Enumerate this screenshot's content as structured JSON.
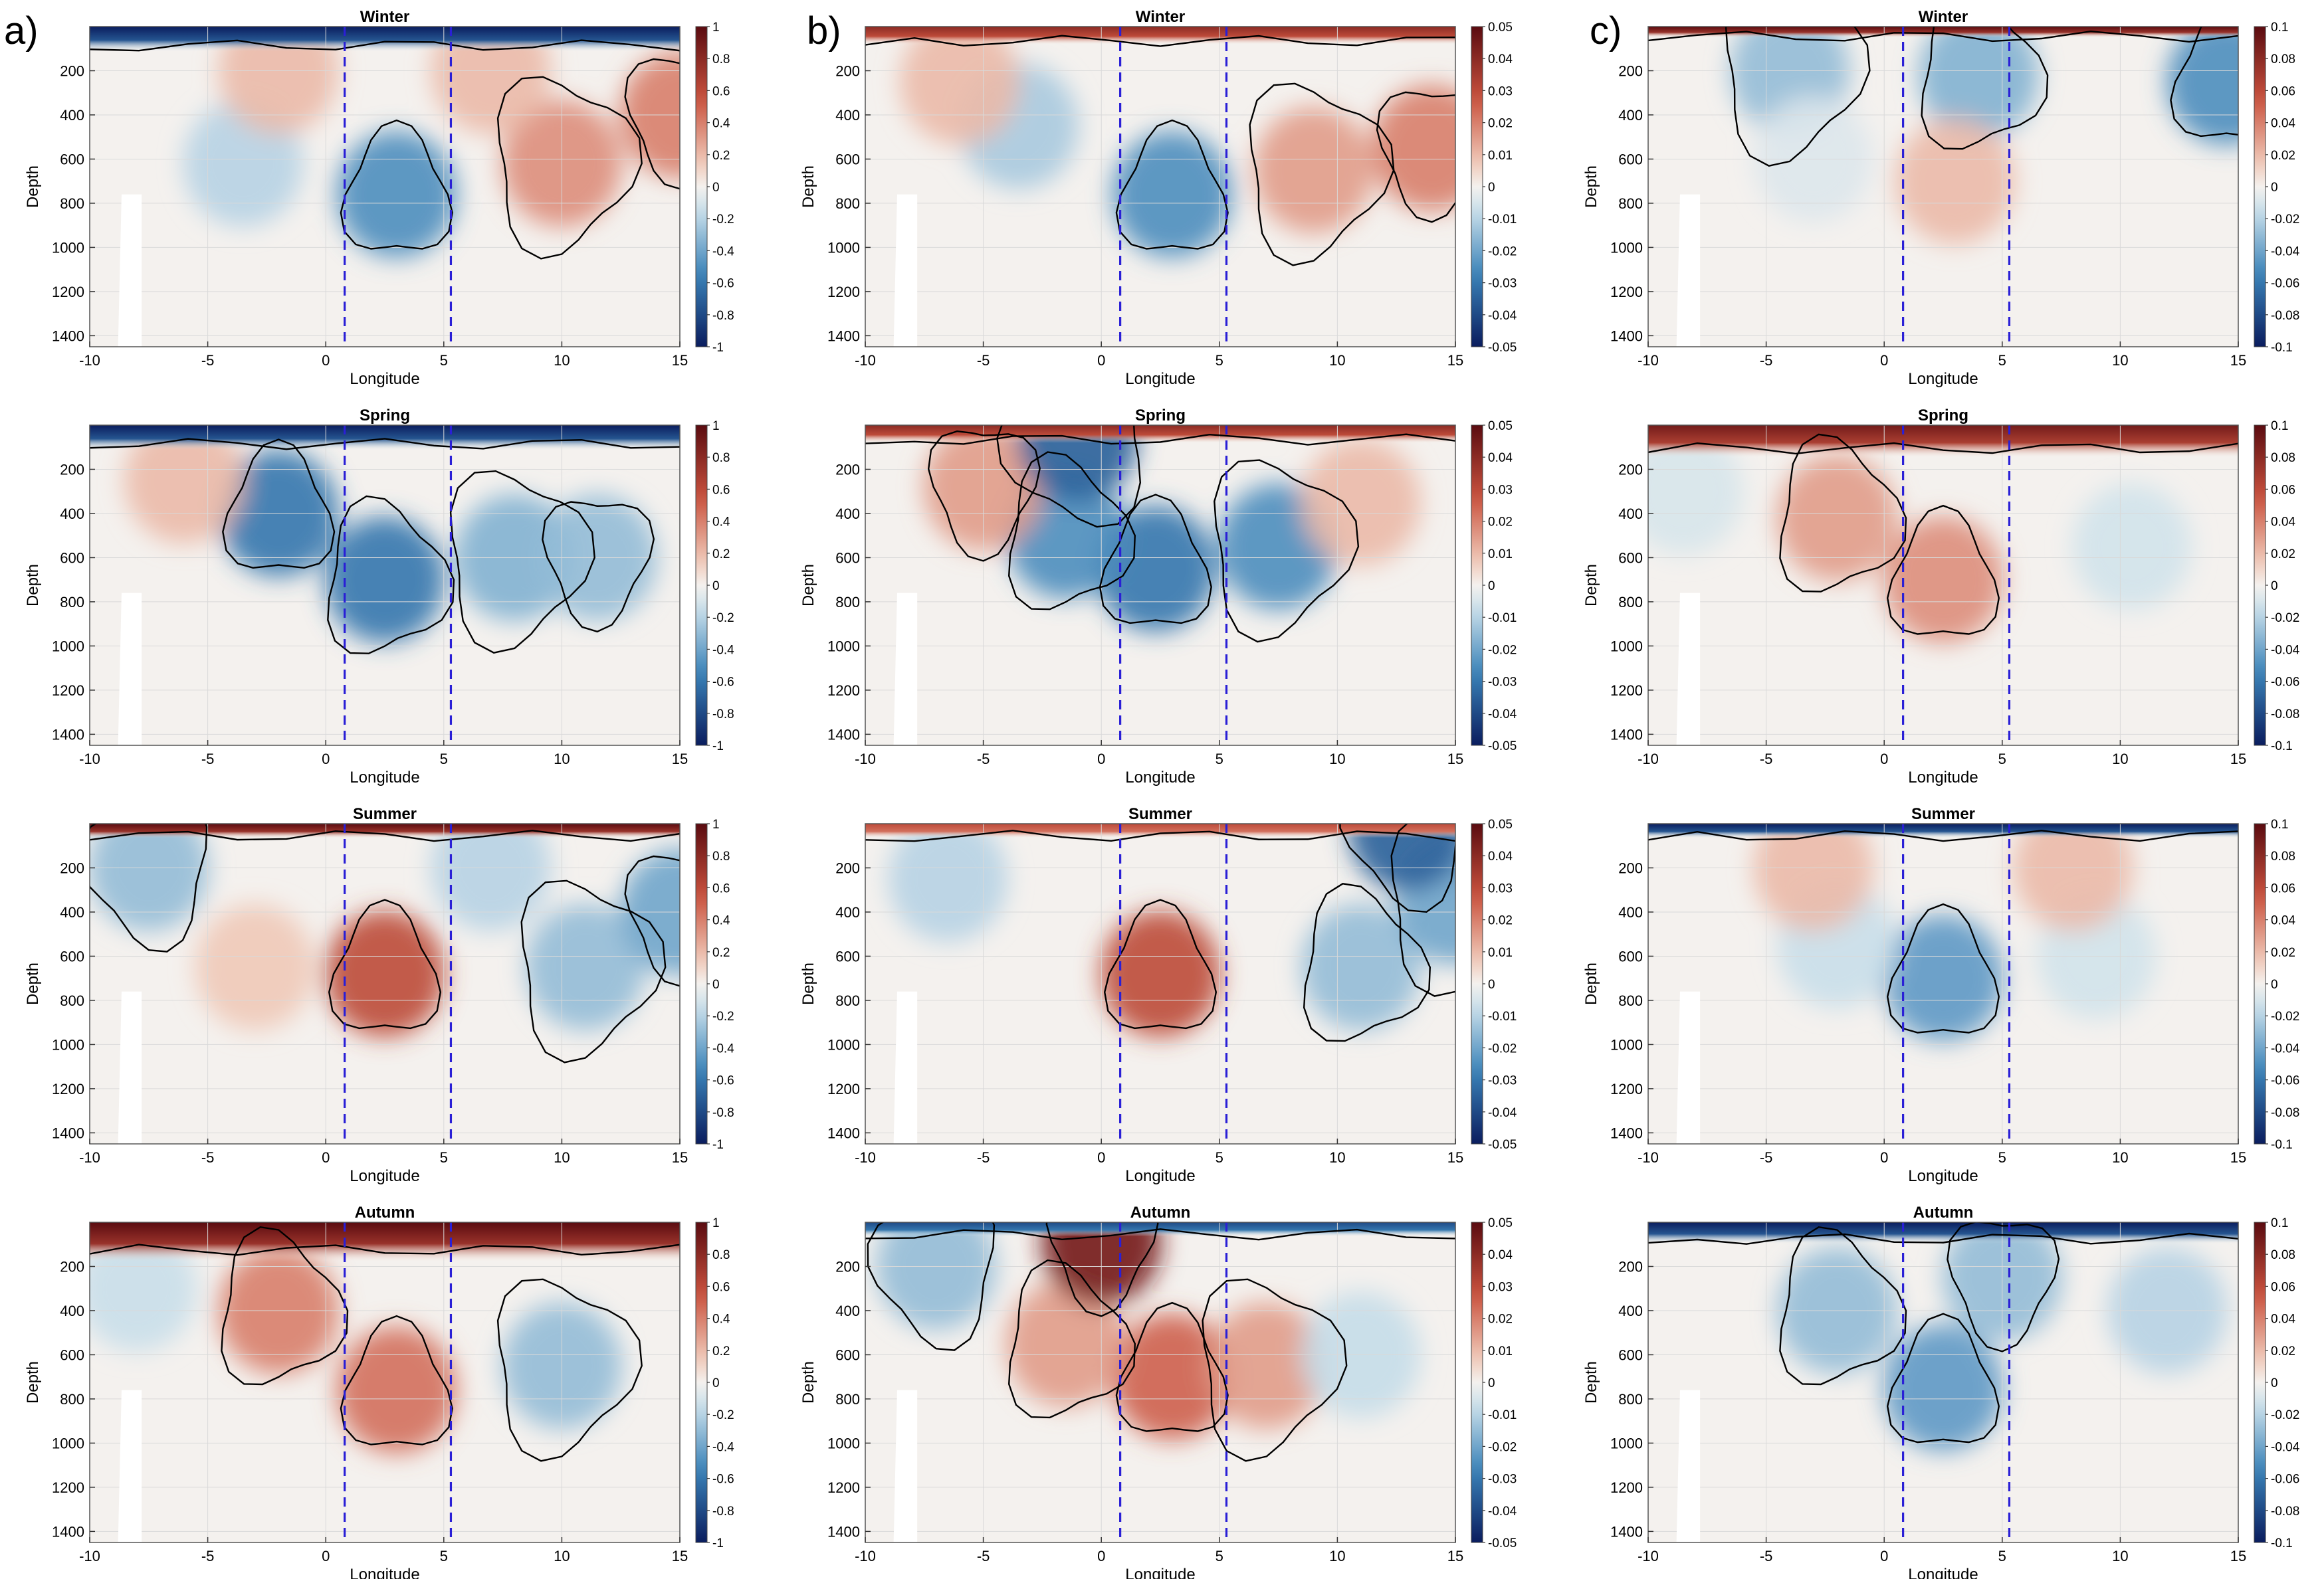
{
  "figure": {
    "panel_letters": [
      "a)",
      "b)",
      "c)"
    ]
  },
  "colors": {
    "dark_blue": "#0a1d5e",
    "mid_blue": "#3a82b8",
    "light_blue": "#c9dfea",
    "neutral": "#f4f1ee",
    "light_red": "#f0c9b8",
    "mid_red": "#c9523e",
    "dark_red": "#5a0b10",
    "boundary_line": "#2a1fd6",
    "contour": "#000000",
    "land_mask": "#ffffff",
    "frame": "#555555"
  },
  "chart_data": [
    {
      "type": "heatmap",
      "column": "a",
      "title": "Winter",
      "xlabel": "Longitude",
      "ylabel": "Depth",
      "xlim": [
        -10,
        15
      ],
      "ylim": [
        1450,
        0
      ],
      "xticks": [
        "-10",
        "-5",
        "0",
        "5",
        "10",
        "15"
      ],
      "yticks": [
        "200",
        "400",
        "600",
        "800",
        "1000",
        "1200",
        "1400"
      ],
      "colorbar": {
        "range": [
          -1,
          1
        ],
        "ticks": [
          "1",
          "0.8",
          "0.6",
          "0.4",
          "0.2",
          "0",
          "-0.2",
          "-0.4",
          "-0.6",
          "-0.8",
          "-1"
        ]
      },
      "boundary_lines_x": [
        0.8,
        5.3
      ],
      "land_mask": {
        "x": [
          -8.8,
          -7.8
        ],
        "depth_from": 760
      },
      "surface_band": {
        "value": -1.0,
        "depth": 70
      },
      "features": [
        {
          "x": 3,
          "depth": 760,
          "value": -0.5
        },
        {
          "x": -3.5,
          "depth": 620,
          "value": -0.2
        },
        {
          "x": 10,
          "depth": 620,
          "value": 0.35
        },
        {
          "x": 15,
          "depth": 400,
          "value": 0.4
        },
        {
          "x": -2,
          "depth": 200,
          "value": 0.2
        },
        {
          "x": 7,
          "depth": 200,
          "value": 0.2
        }
      ]
    },
    {
      "type": "heatmap",
      "column": "a",
      "title": "Spring",
      "xlabel": "Longitude",
      "ylabel": "Depth",
      "xlim": [
        -10,
        15
      ],
      "ylim": [
        1450,
        0
      ],
      "xticks": [
        "-10",
        "-5",
        "0",
        "5",
        "10",
        "15"
      ],
      "yticks": [
        "200",
        "400",
        "600",
        "800",
        "1000",
        "1200",
        "1400"
      ],
      "colorbar": {
        "range": [
          -1,
          1
        ],
        "ticks": [
          "1",
          "0.8",
          "0.6",
          "0.4",
          "0.2",
          "0",
          "-0.2",
          "-0.4",
          "-0.6",
          "-0.8",
          "-1"
        ]
      },
      "boundary_lines_x": [
        0.8,
        5.3
      ],
      "land_mask": {
        "x": [
          -8.8,
          -7.8
        ],
        "depth_from": 760
      },
      "surface_band": {
        "value": -1.0,
        "depth": 70
      },
      "features": [
        {
          "x": -2,
          "depth": 400,
          "value": -0.6
        },
        {
          "x": 2.5,
          "depth": 700,
          "value": -0.6
        },
        {
          "x": 8,
          "depth": 600,
          "value": -0.35
        },
        {
          "x": 11.5,
          "depth": 600,
          "value": -0.3
        },
        {
          "x": -6,
          "depth": 250,
          "value": 0.2
        }
      ]
    },
    {
      "type": "heatmap",
      "column": "a",
      "title": "Summer",
      "xlabel": "Longitude",
      "ylabel": "Depth",
      "xlim": [
        -10,
        15
      ],
      "ylim": [
        1450,
        0
      ],
      "xticks": [
        "-10",
        "-5",
        "0",
        "5",
        "10",
        "15"
      ],
      "yticks": [
        "200",
        "400",
        "600",
        "800",
        "1000",
        "1200",
        "1400"
      ],
      "colorbar": {
        "range": [
          -1,
          1
        ],
        "ticks": [
          "1",
          "0.8",
          "0.6",
          "0.4",
          "0.2",
          "0",
          "-0.2",
          "-0.4",
          "-0.6",
          "-0.8",
          "-1"
        ]
      },
      "boundary_lines_x": [
        0.8,
        5.3
      ],
      "land_mask": {
        "x": [
          -8.8,
          -7.8
        ],
        "depth_from": 760
      },
      "surface_band": {
        "value": 1.0,
        "depth": 40
      },
      "features": [
        {
          "x": 2.5,
          "depth": 680,
          "value": 0.6
        },
        {
          "x": -3,
          "depth": 650,
          "value": 0.15
        },
        {
          "x": 11,
          "depth": 650,
          "value": -0.3
        },
        {
          "x": 15,
          "depth": 400,
          "value": -0.4
        },
        {
          "x": -7.5,
          "depth": 200,
          "value": -0.3
        },
        {
          "x": 7,
          "depth": 200,
          "value": -0.2
        }
      ]
    },
    {
      "type": "heatmap",
      "column": "a",
      "title": "Autumn",
      "xlabel": "Longitude",
      "ylabel": "Depth",
      "xlim": [
        -10,
        15
      ],
      "ylim": [
        1450,
        0
      ],
      "xticks": [
        "-10",
        "-5",
        "0",
        "5",
        "10",
        "15"
      ],
      "yticks": [
        "200",
        "400",
        "600",
        "800",
        "1000",
        "1200",
        "1400"
      ],
      "colorbar": {
        "range": [
          -1,
          1
        ],
        "ticks": [
          "1",
          "0.8",
          "0.6",
          "0.4",
          "0.2",
          "0",
          "-0.2",
          "-0.4",
          "-0.6",
          "-0.8",
          "-1"
        ]
      },
      "boundary_lines_x": [
        0.8,
        5.3
      ],
      "land_mask": {
        "x": [
          -8.8,
          -7.8
        ],
        "depth_from": 760
      },
      "surface_band": {
        "value": 1.0,
        "depth": 110
      },
      "features": [
        {
          "x": 3,
          "depth": 760,
          "value": 0.45
        },
        {
          "x": -2,
          "depth": 400,
          "value": 0.4
        },
        {
          "x": 10,
          "depth": 650,
          "value": -0.3
        },
        {
          "x": -8,
          "depth": 300,
          "value": -0.15
        }
      ]
    },
    {
      "type": "heatmap",
      "column": "b",
      "title": "Winter",
      "xlabel": "Longitude",
      "ylabel": "Depth",
      "xlim": [
        -10,
        15
      ],
      "ylim": [
        1450,
        0
      ],
      "xticks": [
        "-10",
        "-5",
        "0",
        "5",
        "10",
        "15"
      ],
      "yticks": [
        "200",
        "400",
        "600",
        "800",
        "1000",
        "1200",
        "1400"
      ],
      "colorbar": {
        "range": [
          -0.05,
          0.05
        ],
        "ticks": [
          "0.05",
          "0.04",
          "0.03",
          "0.02",
          "0.01",
          "0",
          "-0.01",
          "-0.02",
          "-0.03",
          "-0.04",
          "-0.05"
        ]
      },
      "boundary_lines_x": [
        0.8,
        5.3
      ],
      "land_mask": {
        "x": [
          -8.8,
          -7.8
        ],
        "depth_from": 760
      },
      "surface_band": {
        "value": 0.04,
        "depth": 50
      },
      "features": [
        {
          "x": 3,
          "depth": 760,
          "value": -0.025
        },
        {
          "x": -3.5,
          "depth": 450,
          "value": -0.012
        },
        {
          "x": 9,
          "depth": 650,
          "value": 0.015
        },
        {
          "x": 14,
          "depth": 550,
          "value": 0.02
        },
        {
          "x": -6,
          "depth": 250,
          "value": 0.01
        }
      ]
    },
    {
      "type": "heatmap",
      "column": "b",
      "title": "Spring",
      "xlabel": "Longitude",
      "ylabel": "Depth",
      "xlim": [
        -10,
        15
      ],
      "ylim": [
        1450,
        0
      ],
      "xticks": [
        "-10",
        "-5",
        "0",
        "5",
        "10",
        "15"
      ],
      "yticks": [
        "200",
        "400",
        "600",
        "800",
        "1000",
        "1200",
        "1400"
      ],
      "colorbar": {
        "range": [
          -0.05,
          0.05
        ],
        "ticks": [
          "0.05",
          "0.04",
          "0.03",
          "0.02",
          "0.01",
          "0",
          "-0.01",
          "-0.02",
          "-0.03",
          "-0.04",
          "-0.05"
        ]
      },
      "boundary_lines_x": [
        0.8,
        5.3
      ],
      "land_mask": {
        "x": [
          -8.8,
          -7.8
        ],
        "depth_from": 760
      },
      "surface_band": {
        "value": 0.04,
        "depth": 50
      },
      "features": [
        {
          "x": 2.3,
          "depth": 650,
          "value": -0.03
        },
        {
          "x": -1.5,
          "depth": 500,
          "value": -0.025
        },
        {
          "x": 7.5,
          "depth": 550,
          "value": -0.025
        },
        {
          "x": -5,
          "depth": 280,
          "value": 0.015
        },
        {
          "x": 11,
          "depth": 350,
          "value": 0.01
        },
        {
          "x": -1,
          "depth": 60,
          "value": -0.035
        }
      ]
    },
    {
      "type": "heatmap",
      "column": "b",
      "title": "Summer",
      "xlabel": "Longitude",
      "ylabel": "Depth",
      "xlim": [
        -10,
        15
      ],
      "ylim": [
        1450,
        0
      ],
      "xticks": [
        "-10",
        "-5",
        "0",
        "5",
        "10",
        "15"
      ],
      "yticks": [
        "200",
        "400",
        "600",
        "800",
        "1000",
        "1200",
        "1400"
      ],
      "colorbar": {
        "range": [
          -0.05,
          0.05
        ],
        "ticks": [
          "0.05",
          "0.04",
          "0.03",
          "0.02",
          "0.01",
          "0",
          "-0.01",
          "-0.02",
          "-0.03",
          "-0.04",
          "-0.05"
        ]
      },
      "boundary_lines_x": [
        0.8,
        5.3
      ],
      "land_mask": {
        "x": [
          -8.8,
          -7.8
        ],
        "depth_from": 760
      },
      "surface_band": {
        "value": 0.03,
        "depth": 40
      },
      "features": [
        {
          "x": 2.5,
          "depth": 680,
          "value": 0.03
        },
        {
          "x": 11,
          "depth": 650,
          "value": -0.015
        },
        {
          "x": 15,
          "depth": 350,
          "value": -0.02
        },
        {
          "x": -6.5,
          "depth": 250,
          "value": -0.01
        },
        {
          "x": 13,
          "depth": 20,
          "value": -0.035
        }
      ]
    },
    {
      "type": "heatmap",
      "column": "b",
      "title": "Autumn",
      "xlabel": "Longitude",
      "ylabel": "Depth",
      "xlim": [
        -10,
        15
      ],
      "ylim": [
        1450,
        0
      ],
      "xticks": [
        "-10",
        "-5",
        "0",
        "5",
        "10",
        "15"
      ],
      "yticks": [
        "200",
        "400",
        "600",
        "800",
        "1000",
        "1200",
        "1400"
      ],
      "colorbar": {
        "range": [
          -0.05,
          0.05
        ],
        "ticks": [
          "0.05",
          "0.04",
          "0.03",
          "0.02",
          "0.01",
          "0",
          "-0.01",
          "-0.02",
          "-0.03",
          "-0.04",
          "-0.05"
        ]
      },
      "boundary_lines_x": [
        0.8,
        5.3
      ],
      "land_mask": {
        "x": [
          -8.8,
          -7.8
        ],
        "depth_from": 760
      },
      "surface_band": {
        "value": -0.04,
        "depth": 40
      },
      "features": [
        {
          "x": 3,
          "depth": 700,
          "value": 0.025
        },
        {
          "x": -1.5,
          "depth": 550,
          "value": 0.015
        },
        {
          "x": 7,
          "depth": 650,
          "value": 0.015
        },
        {
          "x": 0,
          "depth": 90,
          "value": 0.045
        },
        {
          "x": -7,
          "depth": 200,
          "value": -0.015
        },
        {
          "x": 11,
          "depth": 600,
          "value": -0.008
        }
      ]
    },
    {
      "type": "heatmap",
      "column": "c",
      "title": "Winter",
      "xlabel": "Longitude",
      "ylabel": "Depth",
      "xlim": [
        -10,
        15
      ],
      "ylim": [
        1450,
        0
      ],
      "xticks": [
        "-10",
        "-5",
        "0",
        "5",
        "10",
        "15"
      ],
      "yticks": [
        "200",
        "400",
        "600",
        "800",
        "1000",
        "1200",
        "1400"
      ],
      "colorbar": {
        "range": [
          -0.1,
          0.1
        ],
        "ticks": [
          "0.1",
          "0.08",
          "0.06",
          "0.04",
          "0.02",
          "0",
          "-0.02",
          "-0.04",
          "-0.06",
          "-0.08",
          "-0.1"
        ]
      },
      "boundary_lines_x": [
        0.8,
        5.3
      ],
      "land_mask": {
        "x": [
          -8.8,
          -7.8
        ],
        "depth_from": 760
      },
      "surface_band": {
        "value": 0.1,
        "depth": 30
      },
      "features": [
        {
          "x": 14.5,
          "depth": 250,
          "value": -0.05
        },
        {
          "x": 4,
          "depth": 220,
          "value": -0.035
        },
        {
          "x": -4,
          "depth": 200,
          "value": -0.03
        },
        {
          "x": 3,
          "depth": 700,
          "value": 0.02
        },
        {
          "x": -3,
          "depth": 600,
          "value": -0.008
        }
      ]
    },
    {
      "type": "heatmap",
      "column": "c",
      "title": "Spring",
      "xlabel": "Longitude",
      "ylabel": "Depth",
      "xlim": [
        -10,
        15
      ],
      "ylim": [
        1450,
        0
      ],
      "xticks": [
        "-10",
        "-5",
        "0",
        "5",
        "10",
        "15"
      ],
      "yticks": [
        "200",
        "400",
        "600",
        "800",
        "1000",
        "1200",
        "1400"
      ],
      "colorbar": {
        "range": [
          -0.1,
          0.1
        ],
        "ticks": [
          "0.1",
          "0.08",
          "0.06",
          "0.04",
          "0.02",
          "0",
          "-0.02",
          "-0.04",
          "-0.06",
          "-0.08",
          "-0.1"
        ]
      },
      "boundary_lines_x": [
        0.8,
        5.3
      ],
      "land_mask": {
        "x": [
          -8.8,
          -7.8
        ],
        "depth_from": 760
      },
      "surface_band": {
        "value": 0.09,
        "depth": 90
      },
      "features": [
        {
          "x": 2.5,
          "depth": 700,
          "value": 0.035
        },
        {
          "x": -2,
          "depth": 420,
          "value": 0.03
        },
        {
          "x": 10.5,
          "depth": 550,
          "value": -0.012
        },
        {
          "x": -8.5,
          "depth": 300,
          "value": -0.01
        }
      ]
    },
    {
      "type": "heatmap",
      "column": "c",
      "title": "Summer",
      "xlabel": "Longitude",
      "ylabel": "Depth",
      "xlim": [
        -10,
        15
      ],
      "ylim": [
        1450,
        0
      ],
      "xticks": [
        "-10",
        "-5",
        "0",
        "5",
        "10",
        "15"
      ],
      "yticks": [
        "200",
        "400",
        "600",
        "800",
        "1000",
        "1200",
        "1400"
      ],
      "colorbar": {
        "range": [
          -0.1,
          0.1
        ],
        "ticks": [
          "0.1",
          "0.08",
          "0.06",
          "0.04",
          "0.02",
          "0",
          "-0.02",
          "-0.04",
          "-0.06",
          "-0.08",
          "-0.1"
        ]
      },
      "boundary_lines_x": [
        0.8,
        5.3
      ],
      "land_mask": {
        "x": [
          -8.8,
          -7.8
        ],
        "depth_from": 760
      },
      "surface_band": {
        "value": -0.1,
        "depth": 40
      },
      "features": [
        {
          "x": 2.5,
          "depth": 700,
          "value": -0.045
        },
        {
          "x": -2,
          "depth": 550,
          "value": -0.015
        },
        {
          "x": 9,
          "depth": 600,
          "value": -0.012
        },
        {
          "x": -3,
          "depth": 200,
          "value": 0.02
        },
        {
          "x": 8,
          "depth": 200,
          "value": 0.02
        }
      ]
    },
    {
      "type": "heatmap",
      "column": "c",
      "title": "Autumn",
      "xlabel": "Longitude",
      "ylabel": "Depth",
      "xlim": [
        -10,
        15
      ],
      "ylim": [
        1450,
        0
      ],
      "xticks": [
        "-10",
        "-5",
        "0",
        "5",
        "10",
        "15"
      ],
      "yticks": [
        "200",
        "400",
        "600",
        "800",
        "1000",
        "1200",
        "1400"
      ],
      "colorbar": {
        "range": [
          -0.1,
          0.1
        ],
        "ticks": [
          "0.1",
          "0.08",
          "0.06",
          "0.04",
          "0.02",
          "0",
          "-0.02",
          "-0.04",
          "-0.06",
          "-0.08",
          "-0.1"
        ]
      },
      "boundary_lines_x": [
        0.8,
        5.3
      ],
      "land_mask": {
        "x": [
          -8.8,
          -7.8
        ],
        "depth_from": 760
      },
      "surface_band": {
        "value": -0.1,
        "depth": 60
      },
      "features": [
        {
          "x": 2.5,
          "depth": 750,
          "value": -0.045
        },
        {
          "x": -2,
          "depth": 400,
          "value": -0.03
        },
        {
          "x": 12,
          "depth": 400,
          "value": -0.02
        },
        {
          "x": 5,
          "depth": 250,
          "value": -0.03
        }
      ]
    }
  ]
}
